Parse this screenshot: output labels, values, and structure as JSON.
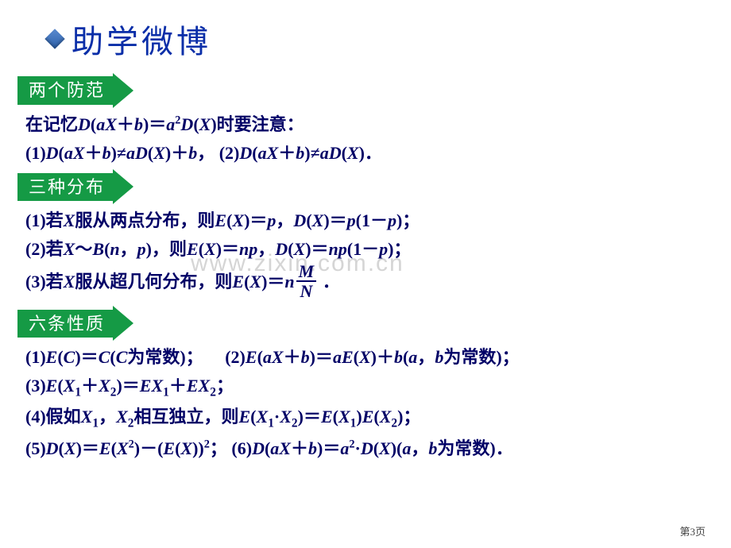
{
  "header": {
    "title": "助学微博"
  },
  "colors": {
    "title_color": "#0a2ea8",
    "text_color": "#000066",
    "banner_bg": "#159a45",
    "banner_text": "#ffffff",
    "diamond_gradient_start": "#5b8bd0",
    "diamond_gradient_end": "#2b5fa8",
    "background": "#ffffff"
  },
  "typography": {
    "title_fontsize": 40,
    "banner_fontsize": 22,
    "body_fontsize": 22,
    "body_fontweight": "bold",
    "page_num_fontsize": 13
  },
  "sections": [
    {
      "banner": "两个防范",
      "lines": [
        {
          "html": "<span class='zh'>在记忆</span><span class='italic'>D</span>(<span class='italic'>aX</span>＋<span class='italic'>b</span>)＝<span class='italic'>a</span><sup>2</sup><span class='italic'>D</span>(<span class='italic'>X</span>)<span class='zh'>时要注意：</span>"
        },
        {
          "html": "(1)<span class='italic'>D</span>(<span class='italic'>aX</span>＋<span class='italic'>b</span>)≠<span class='italic'>aD</span>(<span class='italic'>X</span>)＋<span class='italic'>b</span>，&nbsp;(2)<span class='italic'>D</span>(<span class='italic'>aX</span>＋<span class='italic'>b</span>)≠<span class='italic'>aD</span>(<span class='italic'>X</span>)．"
        }
      ]
    },
    {
      "banner": "三种分布",
      "lines": [
        {
          "html": "(1)<span class='zh'>若</span><span class='italic'>X</span><span class='zh'>服从两点分布，则</span><span class='italic'>E</span>(<span class='italic'>X</span>)＝<span class='italic'>p</span>，<span class='italic'>D</span>(<span class='italic'>X</span>)＝<span class='italic'>p</span>(1－<span class='italic'>p</span>)；"
        },
        {
          "html": "(2)<span class='zh'>若</span><span class='italic'>X</span>～<span class='italic'>B</span>(<span class='italic'>n</span>，<span class='italic'>p</span>)，<span class='zh'>则</span><span class='italic'>E</span>(<span class='italic'>X</span>)＝<span class='italic'>np</span>，<span class='italic'>D</span>(<span class='italic'>X</span>)＝<span class='italic'>np</span>(1－<span class='italic'>p</span>)；"
        },
        {
          "html": "(3)<span class='zh'>若</span><span class='italic'>X</span><span class='zh'>服从超几何分布，则</span><span class='italic'>E</span>(<span class='italic'>X</span>)＝<span class='italic'>n</span><span class='fraction'><span class='num'>M</span><span class='den'>N</span></span> ．"
        }
      ]
    },
    {
      "banner": "六条性质",
      "lines": [
        {
          "html": "(1)<span class='italic'>E</span>(<span class='italic'>C</span>)＝<span class='italic'>C</span>(<span class='italic'>C</span><span class='zh'>为常数</span>)；&nbsp;&nbsp;&nbsp;&nbsp;&nbsp;(2)<span class='italic'>E</span>(<span class='italic'>aX</span>＋<span class='italic'>b</span>)＝<span class='italic'>aE</span>(<span class='italic'>X</span>)＋<span class='italic'>b</span>(<span class='italic'>a</span>，<span class='italic'>b</span><span class='zh'>为常数</span>)；"
        },
        {
          "html": "(3)<span class='italic'>E</span>(<span class='italic'>X</span><sub>1</sub>＋<span class='italic'>X</span><sub>2</sub>)＝<span class='italic'>EX</span><sub>1</sub>＋<span class='italic'>EX</span><sub>2</sub>；"
        },
        {
          "html": "(4)<span class='zh'>假如</span><span class='italic'>X</span><sub>1</sub>，<span class='italic'>X</span><sub>2</sub><span class='zh'>相互独立，则</span><span class='italic'>E</span>(<span class='italic'>X</span><sub>1</sub>·<span class='italic'>X</span><sub>2</sub>)＝<span class='italic'>E</span>(<span class='italic'>X</span><sub>1</sub>)<span class='italic'>E</span>(<span class='italic'>X</span><sub>2</sub>)；"
        },
        {
          "html": "(5)<span class='italic'>D</span>(<span class='italic'>X</span>)＝<span class='italic'>E</span>(<span class='italic'>X</span><sup>2</sup>)－(<span class='italic'>E</span>(<span class='italic'>X</span>))<sup>2</sup>；&nbsp;(6)<span class='italic'>D</span>(<span class='italic'>aX</span>＋<span class='italic'>b</span>)＝<span class='italic'>a</span><sup>2</sup>·<span class='italic'>D</span>(<span class='italic'>X</span>)(<span class='italic'>a</span>，<span class='italic'>b</span><span class='zh'>为常数</span>)．"
        }
      ]
    }
  ],
  "watermark": "www.zixin.com.cn",
  "page_number": "第3页"
}
